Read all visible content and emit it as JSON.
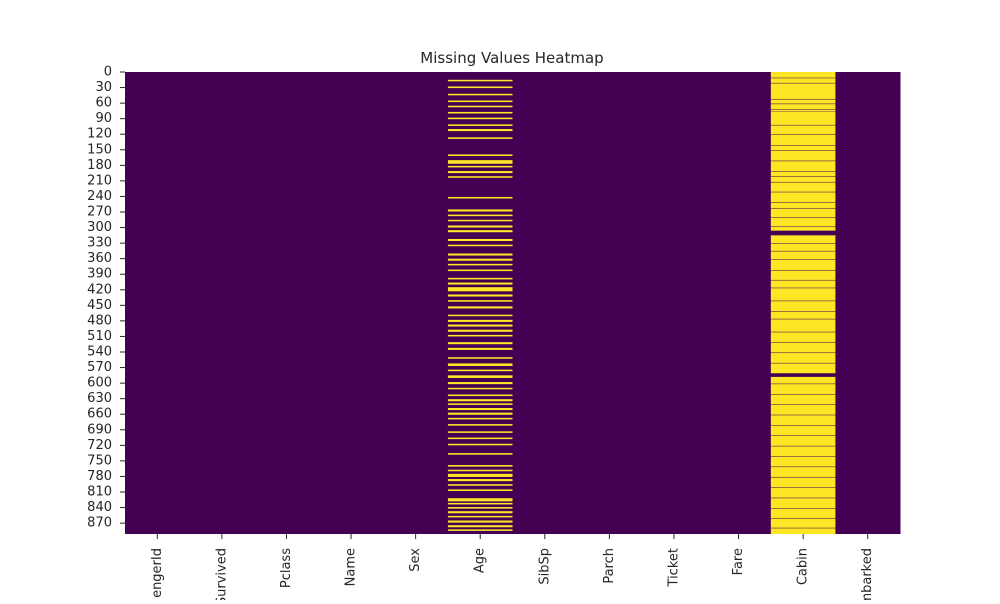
{
  "chart_data": {
    "type": "heatmap",
    "title": "Missing Values Heatmap",
    "xlabel": "",
    "ylabel": "",
    "grid": false,
    "legend": "none",
    "colors": {
      "present": "#440154",
      "missing": "#fde725"
    },
    "columns": [
      "PassengerId",
      "Survived",
      "Pclass",
      "Name",
      "Sex",
      "Age",
      "SibSp",
      "Parch",
      "Ticket",
      "Fare",
      "Cabin",
      "Embarked"
    ],
    "x_tick_labels": [
      "engerId",
      "Survived",
      "Pclass",
      "Name",
      "Sex",
      "Age",
      "SibSp",
      "Parch",
      "Ticket",
      "Fare",
      "Cabin",
      "mbarked"
    ],
    "y_ticks": [
      "0",
      "30",
      "60",
      "90",
      "120",
      "150",
      "180",
      "210",
      "240",
      "270",
      "300",
      "330",
      "360",
      "390",
      "420",
      "450",
      "480",
      "510",
      "540",
      "570",
      "600",
      "630",
      "660",
      "690",
      "720",
      "750",
      "780",
      "810",
      "840",
      "870"
    ],
    "rows": 891,
    "missing_rows": {
      "Age": [
        [
          15,
          17
        ],
        [
          28,
          30
        ],
        [
          42,
          44
        ],
        [
          55,
          57
        ],
        [
          65,
          67
        ],
        [
          77,
          79
        ],
        [
          88,
          90
        ],
        [
          101,
          103
        ],
        [
          110,
          113
        ],
        [
          126,
          128
        ],
        [
          159,
          161
        ],
        [
          170,
          176
        ],
        [
          181,
          183
        ],
        [
          191,
          194
        ],
        [
          201,
          203
        ],
        [
          241,
          243
        ],
        [
          265,
          268
        ],
        [
          275,
          277
        ],
        [
          285,
          287
        ],
        [
          296,
          299
        ],
        [
          305,
          308
        ],
        [
          322,
          325
        ],
        [
          333,
          335
        ],
        [
          350,
          353
        ],
        [
          360,
          363
        ],
        [
          370,
          372
        ],
        [
          381,
          383
        ],
        [
          397,
          399
        ],
        [
          406,
          409
        ],
        [
          415,
          422
        ],
        [
          429,
          432
        ],
        [
          440,
          442
        ],
        [
          452,
          455
        ],
        [
          468,
          470
        ],
        [
          478,
          481
        ],
        [
          487,
          490
        ],
        [
          497,
          500
        ],
        [
          507,
          509
        ],
        [
          521,
          524
        ],
        [
          532,
          535
        ],
        [
          550,
          552
        ],
        [
          562,
          566
        ],
        [
          574,
          576
        ],
        [
          585,
          589
        ],
        [
          598,
          601
        ],
        [
          609,
          611
        ],
        [
          622,
          624
        ],
        [
          631,
          634
        ],
        [
          639,
          641
        ],
        [
          648,
          651
        ],
        [
          657,
          660
        ],
        [
          667,
          669
        ],
        [
          679,
          681
        ],
        [
          693,
          695
        ],
        [
          705,
          707
        ],
        [
          717,
          719
        ],
        [
          735,
          737
        ],
        [
          758,
          760
        ],
        [
          767,
          769
        ],
        [
          775,
          780
        ],
        [
          785,
          788
        ],
        [
          795,
          797
        ],
        [
          805,
          807
        ],
        [
          822,
          827
        ],
        [
          831,
          833
        ],
        [
          839,
          841
        ],
        [
          847,
          850
        ],
        [
          856,
          858
        ],
        [
          865,
          868
        ],
        [
          874,
          877
        ],
        [
          882,
          884
        ]
      ],
      "Cabin": [
        [
          0,
          0
        ],
        [
          2,
          10
        ],
        [
          12,
          20
        ],
        [
          22,
          51
        ],
        [
          53,
          60
        ],
        [
          62,
          71
        ],
        [
          73,
          74
        ],
        [
          76,
          101
        ],
        [
          103,
          119
        ],
        [
          121,
          140
        ],
        [
          142,
          150
        ],
        [
          152,
          170
        ],
        [
          172,
          190
        ],
        [
          192,
          200
        ],
        [
          202,
          211
        ],
        [
          213,
          230
        ],
        [
          232,
          250
        ],
        [
          252,
          262
        ],
        [
          264,
          279
        ],
        [
          281,
          297
        ],
        [
          299,
          305
        ],
        [
          315,
          329
        ],
        [
          331,
          344
        ],
        [
          346,
          360
        ],
        [
          362,
          381
        ],
        [
          383,
          400
        ],
        [
          402,
          415
        ],
        [
          417,
          440
        ],
        [
          442,
          460
        ],
        [
          462,
          475
        ],
        [
          477,
          500
        ],
        [
          502,
          520
        ],
        [
          522,
          540
        ],
        [
          542,
          560
        ],
        [
          562,
          580
        ],
        [
          588,
          600
        ],
        [
          602,
          620
        ],
        [
          622,
          640
        ],
        [
          642,
          660
        ],
        [
          662,
          680
        ],
        [
          682,
          700
        ],
        [
          702,
          720
        ],
        [
          722,
          740
        ],
        [
          742,
          760
        ],
        [
          762,
          780
        ],
        [
          782,
          800
        ],
        [
          802,
          820
        ],
        [
          822,
          840
        ],
        [
          842,
          860
        ],
        [
          862,
          878
        ],
        [
          880,
          890
        ]
      ]
    }
  }
}
